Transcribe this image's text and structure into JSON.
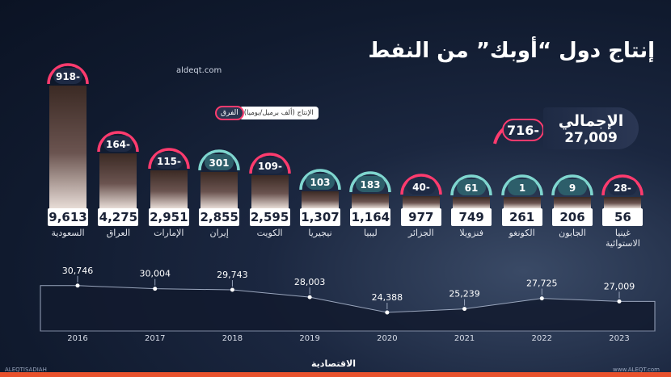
{
  "title": "إنتاج دول “أوبك” من النفط",
  "site": "aldeqt.com",
  "legend": {
    "production_label": "الإنتاج (ألف برميل/يوميا)",
    "diff_label": "الفرق"
  },
  "total": {
    "label": "الإجمالي",
    "value": "27,009",
    "diff": "716-"
  },
  "countries": [
    {
      "name": "السعودية",
      "production": 9613,
      "production_label": "9,613",
      "diff": "918-"
    },
    {
      "name": "العراق",
      "production": 4275,
      "production_label": "4,275",
      "diff": "164-"
    },
    {
      "name": "الإمارات",
      "production": 2951,
      "production_label": "2,951",
      "diff": "115-"
    },
    {
      "name": "إيران",
      "production": 2855,
      "production_label": "2,855",
      "diff": "301"
    },
    {
      "name": "الكويت",
      "production": 2595,
      "production_label": "2,595",
      "diff": "109-"
    },
    {
      "name": "نيجيريا",
      "production": 1307,
      "production_label": "1,307",
      "diff": "103"
    },
    {
      "name": "ليبيا",
      "production": 1164,
      "production_label": "1,164",
      "diff": "183"
    },
    {
      "name": "الجزائر",
      "production": 977,
      "production_label": "977",
      "diff": "40-"
    },
    {
      "name": "فنزويلا",
      "production": 749,
      "production_label": "749",
      "diff": "61"
    },
    {
      "name": "الكونغو",
      "production": 261,
      "production_label": "261",
      "diff": "1"
    },
    {
      "name": "الجابون",
      "production": 206,
      "production_label": "206",
      "diff": "9"
    },
    {
      "name": "غينيا الاستوائية",
      "production": 56,
      "production_label": "56",
      "diff": "28-"
    }
  ],
  "colors": {
    "negative": "#ff3b6e",
    "positive": "#7fd6cf",
    "footer": "#e8522d"
  },
  "chart_data": {
    "type": "area",
    "x": [
      "2016",
      "2017",
      "2018",
      "2019",
      "2020",
      "2021",
      "2022",
      "2023"
    ],
    "values": [
      30746,
      30004,
      29743,
      28003,
      24388,
      25239,
      27725,
      27009
    ],
    "value_labels": [
      "30,746",
      "30,004",
      "29,743",
      "28,003",
      "24,388",
      "25,239",
      "27,725",
      "27,009"
    ],
    "ylim": [
      20000,
      33000
    ]
  },
  "footer": {
    "brand": "الاقتصادية",
    "left_handle": "ALEQTISADIAH",
    "right_url": "www.ALEQT.com"
  }
}
